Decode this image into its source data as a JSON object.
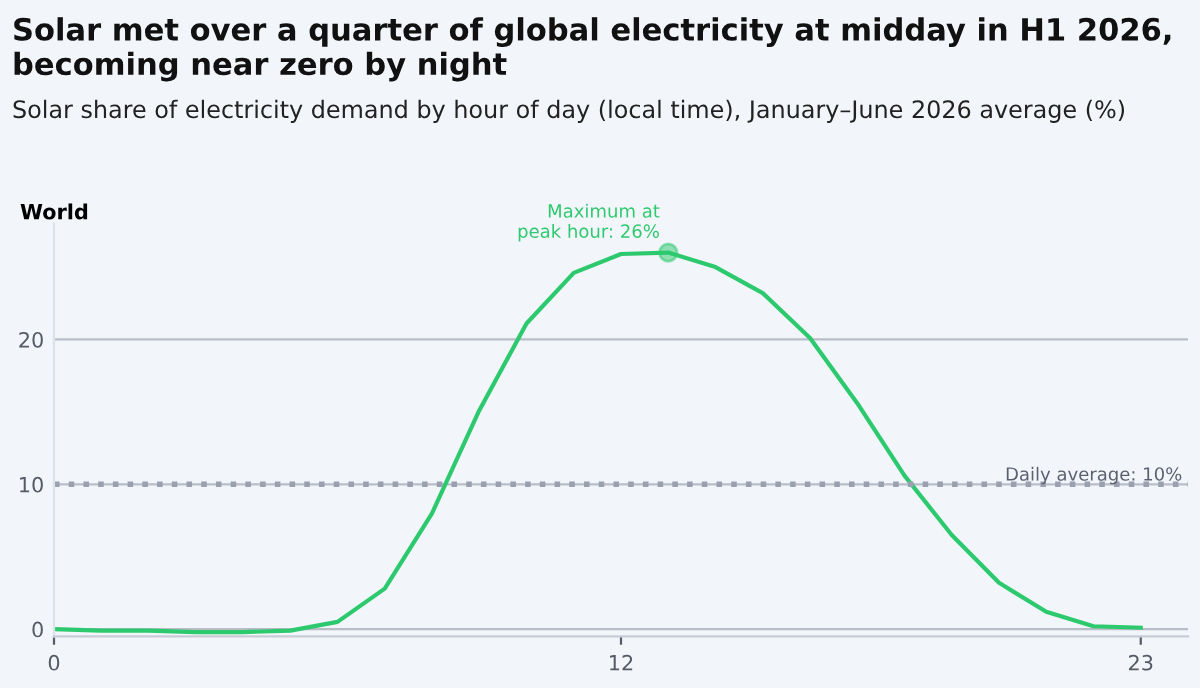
{
  "chart_data": {
    "type": "line",
    "title": "Solar met over a quarter of global electricity at midday in H1 2026, becoming near zero by night",
    "subtitle": "Solar share of electricity demand by hour of day (local time), January–June 2026 average (%)",
    "ylabel": "World",
    "x": [
      0,
      1,
      2,
      3,
      4,
      5,
      6,
      7,
      8,
      9,
      10,
      11,
      12,
      13,
      14,
      15,
      16,
      17,
      18,
      19,
      20,
      21,
      22,
      23
    ],
    "series": [
      {
        "color": "#2dc96e",
        "values": [
          0,
          -0.1,
          -0.1,
          -0.2,
          -0.2,
          -0.1,
          0.5,
          2.8,
          8.0,
          15.1,
          21.1,
          24.6,
          25.9,
          26.0,
          25.0,
          23.2,
          20.1,
          15.6,
          10.6,
          6.5,
          3.2,
          1.2,
          0.2,
          0.1
        ]
      }
    ],
    "xlim": [
      0,
      24
    ],
    "xticks": [
      0,
      12,
      23
    ],
    "ylim": [
      -0.5,
      28
    ],
    "yticks": [
      0,
      10,
      20
    ],
    "grid": "y",
    "legend": false,
    "marker": "none",
    "line_style": "solid",
    "ref_lines": [
      {
        "axis": "y",
        "value": 10,
        "label": "Daily average: 10%",
        "color": "#9aa0b0",
        "line_style": "dotted"
      }
    ],
    "annotations": [
      {
        "text": "Maximum at\npeak hour: 26%",
        "x": 13,
        "y": 26.0
      }
    ]
  }
}
